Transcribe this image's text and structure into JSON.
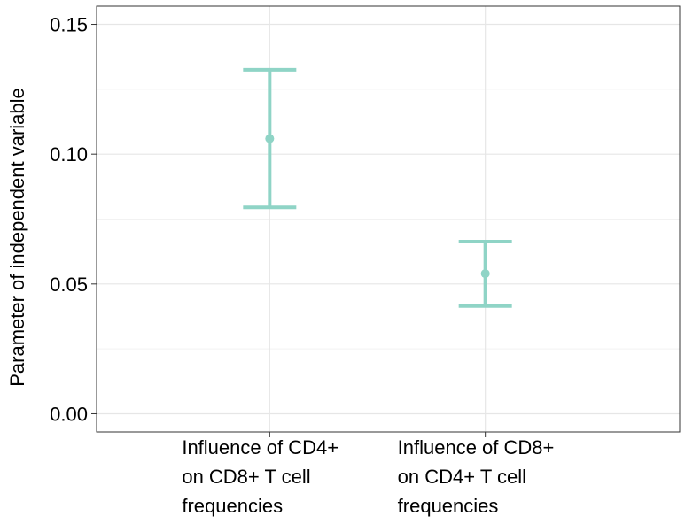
{
  "chart_data": {
    "type": "errorbar",
    "title": "",
    "xlabel": "",
    "ylabel": "Parameter of independent variable",
    "categories": [
      [
        "Influence of CD4+",
        "on CD8+ T cell",
        "frequencies"
      ],
      [
        "Influence of CD8+",
        "on CD4+ T cell",
        "frequencies"
      ]
    ],
    "points": [
      {
        "estimate": 0.106,
        "lower": 0.0795,
        "upper": 0.1325
      },
      {
        "estimate": 0.054,
        "lower": 0.0415,
        "upper": 0.0663
      }
    ],
    "ylim": [
      -0.007,
      0.157
    ],
    "yticks": [
      0.0,
      0.05,
      0.1,
      0.15
    ],
    "ytick_labels": [
      "0.00",
      "0.05",
      "0.10",
      "0.15"
    ],
    "grid": true,
    "color": "#8fd4c6"
  }
}
